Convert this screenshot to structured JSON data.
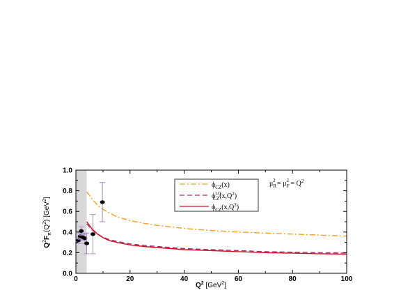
{
  "chart_data": {
    "type": "line",
    "xlabel_main": "Q",
    "xlabel_sup": "2",
    "xlabel_unit": " [GeV",
    "xlabel_unit_sup": "2",
    "xlabel_close": "]",
    "ylabel_text": "Q²F (Q²) [GeV²]",
    "ylabel_parts": {
      "q": "Q",
      "q_sup": "2",
      "f": "F",
      "f_sub": "π",
      "paren": "(Q",
      "paren_sup": "2",
      "paren_close": ")",
      "unit": " [GeV",
      "unit_sup": "2",
      "unit_close": "]"
    },
    "xlim": [
      0,
      100
    ],
    "ylim": [
      0.0,
      1.0
    ],
    "xticks": [
      0,
      20,
      40,
      60,
      80,
      100
    ],
    "yticks": [
      0.0,
      0.2,
      0.4,
      0.6,
      0.8,
      1.0
    ],
    "ytick_labels": [
      "0.0",
      "0.2",
      "0.4",
      "0.6",
      "0.8",
      "1.0"
    ],
    "shaded_region": [
      0,
      4
    ],
    "annotation": {
      "mu": "μ",
      "r": "R",
      "sq": "2",
      "eq1": " = ",
      "f": "F",
      "eq2": " = Q",
      "sq2": "2"
    },
    "legend": [
      {
        "phi": "ϕ",
        "sub": "CZ",
        "sup": "",
        "arg": "(x)"
      },
      {
        "phi": "ϕ",
        "sub": "CZ",
        "sup": "LO",
        "arg": "(x,Q",
        "arg_sup": "2",
        "arg_close": ")"
      },
      {
        "phi": "ϕ",
        "sub": "CZ",
        "sup": "",
        "arg": "(x,Q",
        "arg_sup": "2",
        "arg_close": ")"
      }
    ],
    "series": [
      {
        "name": "ϕCZ(x)",
        "color": "#f0a020",
        "style": "dashdot",
        "x": [
          4,
          6,
          8,
          10,
          12,
          15,
          20,
          25,
          30,
          40,
          50,
          60,
          70,
          80,
          90,
          100
        ],
        "y": [
          0.79,
          0.72,
          0.66,
          0.62,
          0.59,
          0.55,
          0.51,
          0.485,
          0.465,
          0.435,
          0.415,
          0.4,
          0.39,
          0.38,
          0.37,
          0.36
        ]
      },
      {
        "name": "ϕCZLO(x,Q2)",
        "color": "#a0307a",
        "style": "dashed",
        "x": [
          4,
          6,
          8,
          10,
          12,
          15,
          20,
          25,
          30,
          40,
          50,
          60,
          70,
          80,
          90,
          100
        ],
        "y": [
          0.48,
          0.42,
          0.38,
          0.35,
          0.33,
          0.31,
          0.285,
          0.27,
          0.26,
          0.24,
          0.23,
          0.22,
          0.21,
          0.205,
          0.2,
          0.195
        ]
      },
      {
        "name": "ϕCZ(x,Q2)",
        "color": "#d01020",
        "style": "solid",
        "x": [
          4,
          6,
          8,
          10,
          12,
          15,
          20,
          25,
          30,
          40,
          50,
          60,
          70,
          80,
          90,
          100
        ],
        "y": [
          0.5,
          0.43,
          0.38,
          0.345,
          0.32,
          0.3,
          0.275,
          0.26,
          0.25,
          0.23,
          0.22,
          0.21,
          0.2,
          0.195,
          0.19,
          0.185
        ]
      }
    ],
    "data_points": [
      {
        "x": 1.0,
        "y": 0.32,
        "err": 0.03
      },
      {
        "x": 1.6,
        "y": 0.36,
        "err": 0.03
      },
      {
        "x": 2.0,
        "y": 0.41,
        "err": 0.04
      },
      {
        "x": 2.5,
        "y": 0.35,
        "err": 0.03
      },
      {
        "x": 3.3,
        "y": 0.34,
        "err": 0.05
      },
      {
        "x": 4.0,
        "y": 0.29,
        "err": 0.1
      },
      {
        "x": 6.3,
        "y": 0.38,
        "err": 0.19
      },
      {
        "x": 9.8,
        "y": 0.69,
        "err": 0.19
      }
    ],
    "colors": {
      "error_bar": "#a888c8",
      "shade": "#d8d8d8",
      "point": "#000000"
    }
  }
}
